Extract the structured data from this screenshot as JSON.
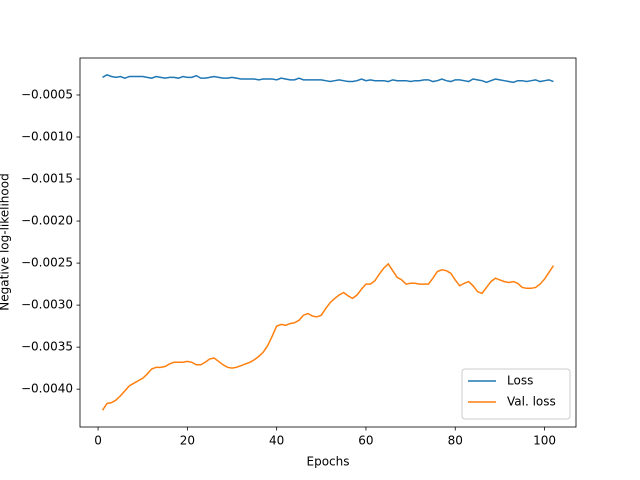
{
  "chart_data": {
    "type": "line",
    "x_label": "Epochs",
    "y_label": "Negative log-likelihood",
    "x": [
      1,
      2,
      3,
      4,
      5,
      6,
      7,
      8,
      9,
      10,
      11,
      12,
      13,
      14,
      15,
      16,
      17,
      18,
      19,
      20,
      21,
      22,
      23,
      24,
      25,
      26,
      27,
      28,
      29,
      30,
      31,
      32,
      33,
      34,
      35,
      36,
      37,
      38,
      39,
      40,
      41,
      42,
      43,
      44,
      45,
      46,
      47,
      48,
      49,
      50,
      51,
      52,
      53,
      54,
      55,
      56,
      57,
      58,
      59,
      60,
      61,
      62,
      63,
      64,
      65,
      66,
      67,
      68,
      69,
      70,
      71,
      72,
      73,
      74,
      75,
      76,
      77,
      78,
      79,
      80,
      81,
      82,
      83,
      84,
      85,
      86,
      87,
      88,
      89,
      90,
      91,
      92,
      93,
      94,
      95,
      96,
      97,
      98,
      99,
      100,
      101,
      102
    ],
    "series": [
      {
        "name": "Loss",
        "color": "#1f77b4",
        "values": [
          -0.00029,
          -0.00026,
          -0.00028,
          -0.00029,
          -0.00028,
          -0.0003,
          -0.00028,
          -0.00028,
          -0.00028,
          -0.00028,
          -0.00029,
          -0.0003,
          -0.00028,
          -0.00029,
          -0.0003,
          -0.00029,
          -0.00029,
          -0.0003,
          -0.00028,
          -0.00029,
          -0.00029,
          -0.00027,
          -0.0003,
          -0.0003,
          -0.00029,
          -0.00028,
          -0.00029,
          -0.0003,
          -0.0003,
          -0.00029,
          -0.0003,
          -0.00031,
          -0.00031,
          -0.00031,
          -0.00031,
          -0.00032,
          -0.00031,
          -0.00031,
          -0.00031,
          -0.00032,
          -0.0003,
          -0.00031,
          -0.00032,
          -0.00032,
          -0.0003,
          -0.00032,
          -0.00032,
          -0.00032,
          -0.00032,
          -0.00032,
          -0.00033,
          -0.00034,
          -0.00033,
          -0.00032,
          -0.00033,
          -0.00034,
          -0.00034,
          -0.00033,
          -0.00031,
          -0.00033,
          -0.00032,
          -0.00033,
          -0.00033,
          -0.00033,
          -0.00034,
          -0.00032,
          -0.00033,
          -0.00033,
          -0.00033,
          -0.00034,
          -0.00033,
          -0.00033,
          -0.00032,
          -0.00032,
          -0.00034,
          -0.00033,
          -0.00031,
          -0.00033,
          -0.00034,
          -0.00032,
          -0.00032,
          -0.00033,
          -0.00034,
          -0.00031,
          -0.00032,
          -0.00033,
          -0.00035,
          -0.00033,
          -0.00031,
          -0.00032,
          -0.00033,
          -0.00034,
          -0.00035,
          -0.00033,
          -0.00033,
          -0.00034,
          -0.00033,
          -0.00032,
          -0.00034,
          -0.00033,
          -0.00032,
          -0.00034
        ]
      },
      {
        "name": "Val. loss",
        "color": "#ff7f0e",
        "values": [
          -0.00425,
          -0.00417,
          -0.00416,
          -0.00413,
          -0.00408,
          -0.00402,
          -0.00396,
          -0.00393,
          -0.0039,
          -0.00387,
          -0.00382,
          -0.00376,
          -0.00374,
          -0.00374,
          -0.00373,
          -0.0037,
          -0.00368,
          -0.00368,
          -0.00368,
          -0.00367,
          -0.00368,
          -0.00371,
          -0.00371,
          -0.00368,
          -0.00364,
          -0.00363,
          -0.00367,
          -0.00371,
          -0.00374,
          -0.00375,
          -0.00374,
          -0.00372,
          -0.0037,
          -0.00368,
          -0.00365,
          -0.00361,
          -0.00356,
          -0.00348,
          -0.00337,
          -0.00325,
          -0.00323,
          -0.00324,
          -0.00322,
          -0.00321,
          -0.00318,
          -0.00312,
          -0.0031,
          -0.00313,
          -0.00314,
          -0.00312,
          -0.00304,
          -0.00297,
          -0.00292,
          -0.00288,
          -0.00285,
          -0.00289,
          -0.00292,
          -0.00288,
          -0.00281,
          -0.00275,
          -0.00275,
          -0.00271,
          -0.00263,
          -0.00256,
          -0.00251,
          -0.00259,
          -0.00267,
          -0.0027,
          -0.00275,
          -0.00274,
          -0.00274,
          -0.00275,
          -0.00275,
          -0.00275,
          -0.00268,
          -0.0026,
          -0.00258,
          -0.00259,
          -0.00262,
          -0.0027,
          -0.00277,
          -0.00274,
          -0.00272,
          -0.00277,
          -0.00284,
          -0.00286,
          -0.00279,
          -0.00272,
          -0.00268,
          -0.0027,
          -0.00272,
          -0.00273,
          -0.00272,
          -0.00274,
          -0.00279,
          -0.0028,
          -0.0028,
          -0.00279,
          -0.00275,
          -0.00269,
          -0.00261,
          -0.00253
        ]
      }
    ],
    "xlim": [
      -4.05,
      107.05
    ],
    "xticks": [
      0,
      20,
      40,
      60,
      80,
      100
    ],
    "ylim": [
      -0.00445,
      -6e-05
    ],
    "yticks": [
      {
        "value": -0.004,
        "label": "−0.0040"
      },
      {
        "value": -0.0035,
        "label": "−0.0035"
      },
      {
        "value": -0.003,
        "label": "−0.0030"
      },
      {
        "value": -0.0025,
        "label": "−0.0025"
      },
      {
        "value": -0.002,
        "label": "−0.0020"
      },
      {
        "value": -0.0015,
        "label": "−0.0015"
      },
      {
        "value": -0.001,
        "label": "−0.0010"
      },
      {
        "value": -0.0005,
        "label": "−0.0005"
      }
    ],
    "legend": "lower right",
    "grid": false
  }
}
